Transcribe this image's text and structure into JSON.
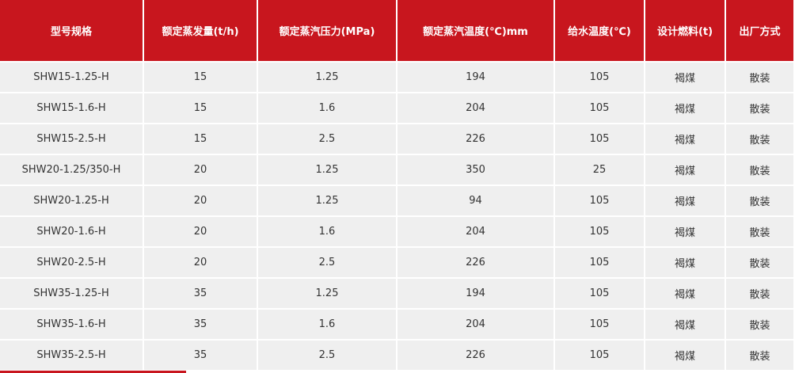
{
  "table": {
    "header": [
      "型号规格",
      "额定蒸发量(t/h)",
      "额定蒸汽压力(MPa)",
      "额定蒸汽温度(℃)mm",
      "给水温度(℃)",
      "设计燃料(t)",
      "出厂方式"
    ],
    "rows": [
      [
        "SHW15-1.25-H",
        "15",
        "1.25",
        "194",
        "105",
        "褐煤",
        "散装"
      ],
      [
        "SHW15-1.6-H",
        "15",
        "1.6",
        "204",
        "105",
        "褐煤",
        "散装"
      ],
      [
        "SHW15-2.5-H",
        "15",
        "2.5",
        "226",
        "105",
        "褐煤",
        "散装"
      ],
      [
        "SHW20-1.25/350-H",
        "20",
        "1.25",
        "350",
        "25",
        "褐煤",
        "散装"
      ],
      [
        "SHW20-1.25-H",
        "20",
        "1.25",
        "94",
        "105",
        "褐煤",
        "散装"
      ],
      [
        "SHW20-1.6-H",
        "20",
        "1.6",
        "204",
        "105",
        "褐煤",
        "散装"
      ],
      [
        "SHW20-2.5-H",
        "20",
        "2.5",
        "226",
        "105",
        "褐煤",
        "散装"
      ],
      [
        "SHW35-1.25-H",
        "35",
        "1.25",
        "194",
        "105",
        "褐煤",
        "散装"
      ],
      [
        "SHW35-1.6-H",
        "35",
        "1.6",
        "204",
        "105",
        "褐煤",
        "散装"
      ],
      [
        "SHW35-2.5-H",
        "35",
        "2.5",
        "226",
        "105",
        "褐煤",
        "散装"
      ]
    ]
  }
}
